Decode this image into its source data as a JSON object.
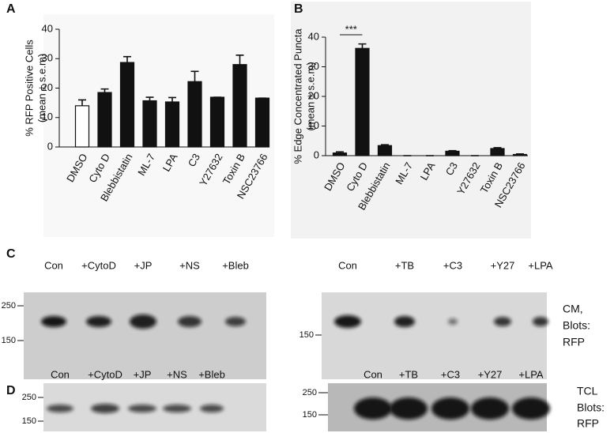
{
  "chart_data": [
    {
      "type": "bar",
      "panel": "A",
      "ylabel": [
        "% RFP Positive Cells",
        "(mean ± s.e.m)"
      ],
      "categories": [
        "DMSO",
        "Cyto D",
        "Blebbistatin",
        "ML-7",
        "LPA",
        "C3",
        "Y27632",
        "Toxin B",
        "NSC23766"
      ],
      "values": [
        14,
        18.5,
        28.7,
        15.7,
        15.3,
        22.2,
        16.9,
        28,
        16.6
      ],
      "errors": [
        2,
        1.2,
        2,
        1.2,
        1.5,
        3.5,
        0,
        3.2,
        0
      ],
      "colors": [
        "#ffffff",
        "#111111",
        "#111111",
        "#111111",
        "#111111",
        "#111111",
        "#111111",
        "#111111",
        "#111111"
      ],
      "ylim": [
        0,
        40
      ],
      "yticks": [
        0,
        10,
        20,
        30,
        40
      ]
    },
    {
      "type": "bar",
      "panel": "B",
      "ylabel": [
        "% Edge Concentrated Puncta",
        "(mean ± s.e.m)"
      ],
      "categories": [
        "DMSO",
        "Cyto D",
        "Blebbistatin",
        "ML-7",
        "LPA",
        "C3",
        "Y27632",
        "Toxin B",
        "NSC23766"
      ],
      "values": [
        0.9,
        36.2,
        3.4,
        0,
        0,
        1.5,
        0,
        2.4,
        0.4
      ],
      "errors": [
        0.4,
        1.5,
        0.3,
        0,
        0,
        0.2,
        0,
        0.3,
        0.2
      ],
      "colors": [
        "#111111",
        "#111111",
        "#111111",
        "#111111",
        "#111111",
        "#111111",
        "#111111",
        "#111111",
        "#111111"
      ],
      "annotation": "***",
      "ylim": [
        0,
        40
      ],
      "yticks": [
        0,
        10,
        20,
        30,
        40
      ]
    }
  ],
  "blots": {
    "C": {
      "label": "C",
      "left": {
        "lanes": [
          "Con",
          "+CytoD",
          "+JP",
          "+NS",
          "+Bleb"
        ],
        "markers": [
          "250",
          "150"
        ]
      },
      "right": {
        "lanes": [
          "Con",
          "+TB",
          "+C3",
          "+Y27",
          "+LPA"
        ],
        "markers": [
          "150"
        ],
        "caption": [
          "CM,",
          "Blots:",
          "RFP"
        ]
      }
    },
    "D": {
      "label": "D",
      "left": {
        "lanes": [
          "Con",
          "+CytoD",
          "+JP",
          "+NS",
          "+Bleb"
        ],
        "markers": [
          "250",
          "150"
        ]
      },
      "right": {
        "lanes": [
          "Con",
          "+TB",
          "+C3",
          "+Y27",
          "+LPA"
        ],
        "markers": [
          "250",
          "150"
        ],
        "caption": [
          "TCL",
          "Blots:",
          "RFP"
        ]
      }
    }
  }
}
